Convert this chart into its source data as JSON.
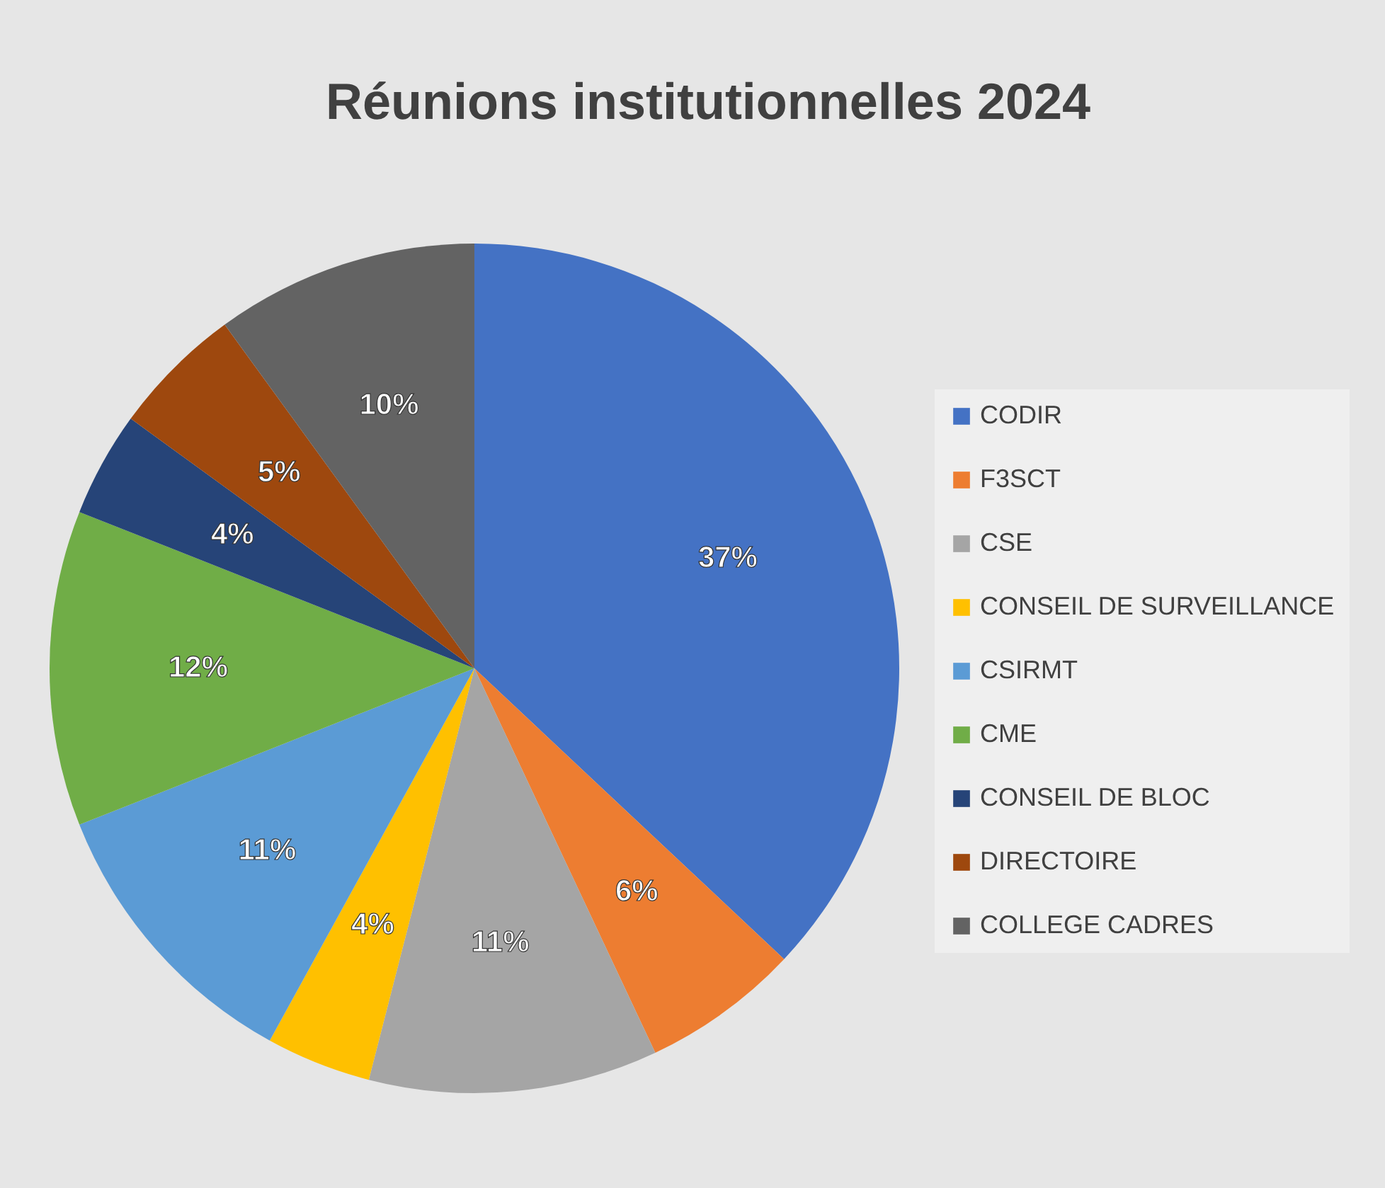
{
  "chart_data": {
    "type": "pie",
    "title": "Réunions institutionnelles 2024",
    "categories": [
      "CODIR",
      "F3SCT",
      "CSE",
      "CONSEIL DE SURVEILLANCE",
      "CSIRMT",
      "CME",
      "CONSEIL DE BLOC",
      "DIRECTOIRE",
      "COLLEGE CADRES"
    ],
    "values": [
      37,
      6,
      11,
      4,
      11,
      12,
      4,
      5,
      10
    ],
    "colors": [
      "#4472c4",
      "#ed7d31",
      "#a5a5a5",
      "#ffc000",
      "#5b9bd5",
      "#70ad47",
      "#264478",
      "#9e480e",
      "#636363"
    ],
    "value_labels": [
      "37%",
      "6%",
      "11%",
      "4%",
      "11%",
      "12%",
      "4%",
      "5%",
      "10%"
    ],
    "legend": "right"
  }
}
